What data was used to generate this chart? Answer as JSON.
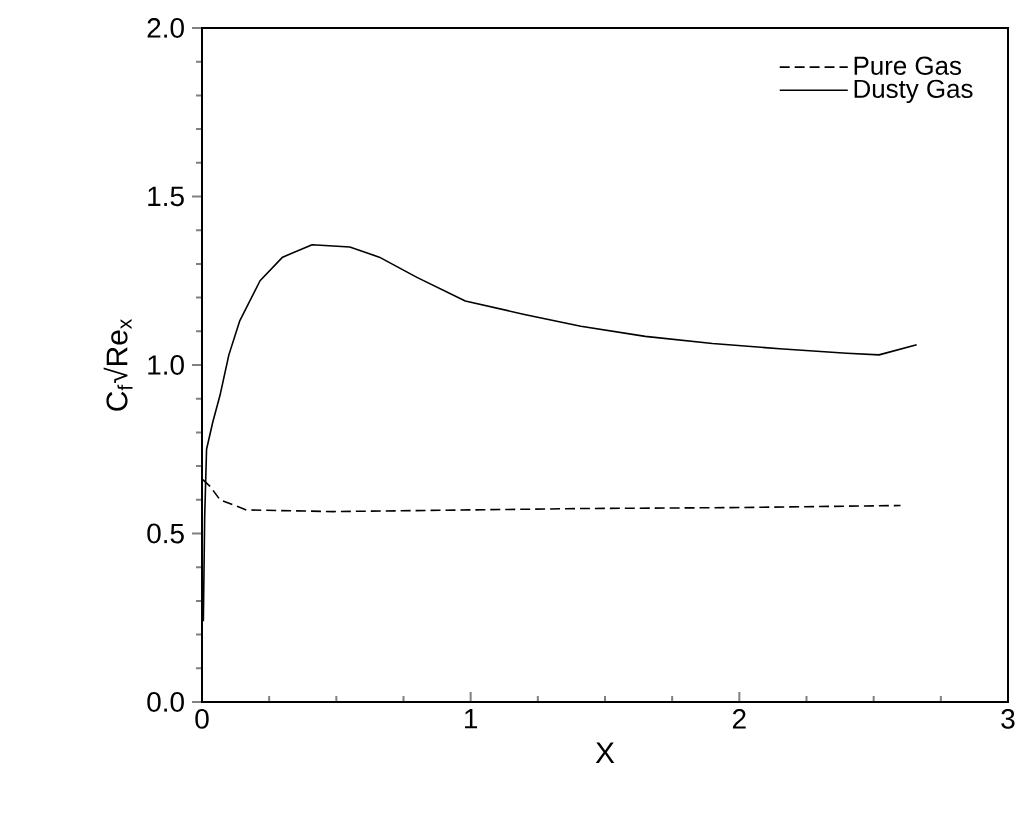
{
  "chart_data": {
    "type": "line",
    "xlabel": "X",
    "ylabel": "C$_{f}$√Re$_{x}$",
    "xlim": [
      0,
      3
    ],
    "ylim": [
      0,
      2
    ],
    "xticks": [
      0,
      1,
      2,
      3
    ],
    "yticks": [
      {
        "value": 0,
        "label": "0.0"
      },
      {
        "value": 0.5,
        "label": "0.5"
      },
      {
        "value": 1,
        "label": "1.0"
      },
      {
        "value": 1.5,
        "label": "1.5"
      },
      {
        "value": 2,
        "label": "2.0"
      }
    ],
    "legend": "top right",
    "grid": false,
    "series": [
      {
        "name": "Pure Gas",
        "color": "#000000",
        "line_style": "dashed",
        "x": [
          0.003,
          0.03,
          0.067,
          0.165,
          0.49,
          1.0,
          1.41,
          2.0,
          2.6
        ],
        "values": [
          0.66,
          0.64,
          0.6,
          0.57,
          0.565,
          0.57,
          0.574,
          0.577,
          0.583
        ]
      },
      {
        "name": "Dusty Gas",
        "color": "#000000",
        "line_style": "solid",
        "x": [
          0.005,
          0.01,
          0.017,
          0.04,
          0.067,
          0.1,
          0.14,
          0.216,
          0.3,
          0.41,
          0.55,
          0.66,
          0.8,
          0.98,
          1.2,
          1.41,
          1.65,
          1.9,
          2.15,
          2.4,
          2.52,
          2.66
        ],
        "values": [
          0.24,
          0.55,
          0.75,
          0.83,
          0.91,
          1.03,
          1.13,
          1.25,
          1.32,
          1.357,
          1.35,
          1.32,
          1.26,
          1.19,
          1.15,
          1.115,
          1.085,
          1.064,
          1.048,
          1.035,
          1.03,
          1.06
        ]
      }
    ]
  }
}
